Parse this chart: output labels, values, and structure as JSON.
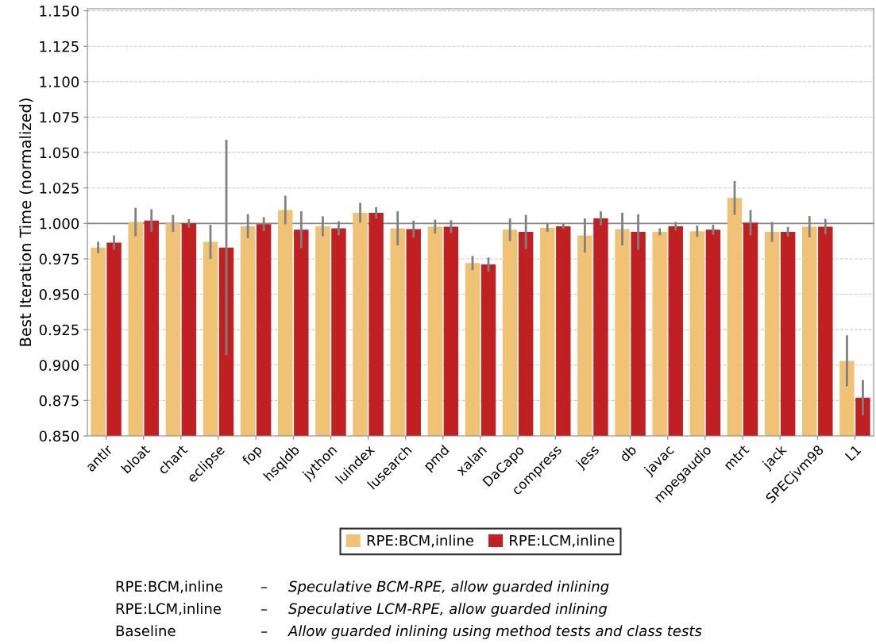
{
  "chart_data": {
    "type": "bar",
    "ylabel": "Best Iteration Time (normalized)",
    "categories": [
      "antlr",
      "bloat",
      "chart",
      "eclipse",
      "fop",
      "hsqldb",
      "jython",
      "luindex",
      "lusearch",
      "pmd",
      "xalan",
      "DaCapo",
      "compress",
      "jess",
      "db",
      "javac",
      "mpegaudio",
      "mtrt",
      "jack",
      "SPECjvm98",
      "L1"
    ],
    "series": [
      {
        "name": "RPE:BCM,inline",
        "color": "#efc276",
        "values": [
          0.983,
          1.001,
          1.0,
          0.987,
          0.998,
          1.0095,
          0.998,
          1.0075,
          0.9965,
          0.9977,
          0.972,
          0.9955,
          0.997,
          0.9915,
          0.996,
          0.994,
          0.9945,
          1.018,
          0.994,
          0.9977,
          0.903
        ],
        "errors": [
          0.004,
          0.01,
          0.006,
          0.012,
          0.0085,
          0.01,
          0.007,
          0.007,
          0.012,
          0.005,
          0.005,
          0.008,
          0.003,
          0.012,
          0.0115,
          0.0025,
          0.004,
          0.012,
          0.007,
          0.0075,
          0.018
        ]
      },
      {
        "name": "RPE:LCM,inline",
        "color": "#c02022",
        "values": [
          0.9865,
          1.002,
          1.0,
          0.983,
          0.9995,
          0.9955,
          0.9965,
          1.0075,
          0.996,
          0.9977,
          0.971,
          0.994,
          0.998,
          1.0035,
          0.994,
          0.998,
          0.9955,
          1.0005,
          0.994,
          0.9977,
          0.877
        ],
        "errors": [
          0.005,
          0.008,
          0.003,
          0.076,
          0.005,
          0.013,
          0.005,
          0.004,
          0.006,
          0.0045,
          0.005,
          0.012,
          0.002,
          0.005,
          0.0125,
          0.003,
          0.0035,
          0.009,
          0.0035,
          0.0055,
          0.0125
        ]
      }
    ],
    "ylim": [
      0.85,
      1.1515
    ],
    "yticks": [
      {
        "value": 0.85,
        "label": "0.850"
      },
      {
        "value": 0.875,
        "label": "0.875"
      },
      {
        "value": 0.9,
        "label": "0.900"
      },
      {
        "value": 0.925,
        "label": "0.925"
      },
      {
        "value": 0.95,
        "label": "0.950"
      },
      {
        "value": 0.975,
        "label": "0.975"
      },
      {
        "value": 1.0,
        "label": "1.000"
      },
      {
        "value": 1.025,
        "label": "1.025"
      },
      {
        "value": 1.05,
        "label": "1.050"
      },
      {
        "value": 1.075,
        "label": "1.075"
      },
      {
        "value": 1.1,
        "label": "1.100"
      },
      {
        "value": 1.125,
        "label": "1.125"
      },
      {
        "value": 1.15,
        "label": "1.150"
      }
    ],
    "ref_lines": [
      {
        "axis": "y",
        "value": 1.0,
        "color": "#888888"
      }
    ],
    "grid": "y",
    "legend": "bottom",
    "annotations": [
      "RPE:BCM,inline – Speculative BCM-RPE, allow guarded inlining",
      "RPE:LCM,inline – Speculative LCM-RPE, allow guarded inlining",
      "Baseline – Allow guarded inlining using method tests and class tests"
    ]
  }
}
